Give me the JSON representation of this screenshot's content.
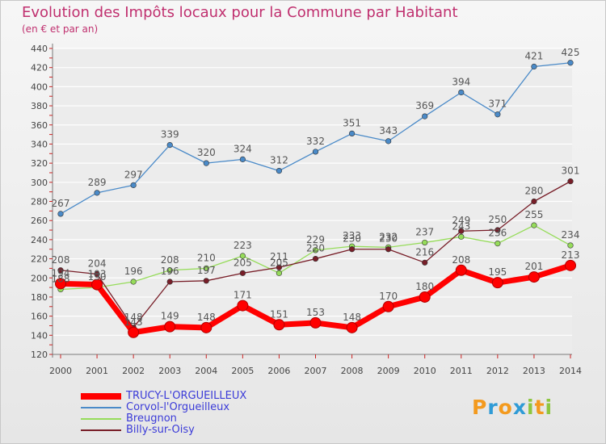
{
  "chart_data": {
    "type": "line",
    "title": "Evolution des Impôts locaux pour la Commune par Habitant",
    "subtitle": "(en € et par an)",
    "x": [
      "2000",
      "2001",
      "2002",
      "2003",
      "2004",
      "2005",
      "2006",
      "2007",
      "2008",
      "2009",
      "2010",
      "2011",
      "2012",
      "2013",
      "2014"
    ],
    "ylim": [
      120,
      440
    ],
    "yticks": [
      120,
      140,
      160,
      180,
      200,
      220,
      240,
      260,
      280,
      300,
      320,
      340,
      360,
      380,
      400,
      420,
      440
    ],
    "grid": "horizontal",
    "series": [
      {
        "name": "TRUCY-L'ORGUEILLEUX",
        "color": "#ff0000",
        "values": [
          194,
          193,
          143,
          149,
          148,
          171,
          151,
          153,
          148,
          170,
          180,
          208,
          195,
          201,
          213
        ]
      },
      {
        "name": "Corvol-l'Orgueilleux",
        "color": "#4a8ac8",
        "values": [
          267,
          289,
          297,
          339,
          320,
          324,
          312,
          332,
          351,
          343,
          369,
          394,
          371,
          421,
          425
        ]
      },
      {
        "name": "Breugnon",
        "color": "#96dc5a",
        "values": [
          188,
          190,
          196,
          208,
          210,
          223,
          205,
          229,
          233,
          232,
          237,
          243,
          236,
          255,
          234
        ]
      },
      {
        "name": "Billy-sur-Oisy",
        "color": "#781e28",
        "values": [
          208,
          204,
          148,
          196,
          197,
          205,
          211,
          220,
          230,
          230,
          216,
          249,
          250,
          280,
          301
        ]
      }
    ],
    "data_labels": [
      [
        "194",
        "193",
        "143",
        "149",
        "148",
        "171",
        "151",
        "153",
        "148",
        "170",
        "180",
        "208",
        "195",
        "201",
        "213"
      ],
      [
        "267",
        "289",
        "297",
        "339",
        "320",
        "324",
        "312",
        "332",
        "351",
        "343",
        "369",
        "394",
        "371",
        "421",
        "425"
      ],
      [
        "188",
        "190",
        "196",
        "208",
        "210",
        "223",
        "205",
        "229",
        "233",
        "232",
        "237",
        "243",
        "236",
        "255",
        "234"
      ],
      [
        "208",
        "204",
        "148",
        "196",
        "197",
        "205",
        "211",
        "220",
        "230",
        "230",
        "216",
        "249",
        "250",
        "280",
        "301"
      ]
    ]
  },
  "legend": [
    {
      "label": "TRUCY-L'ORGUEILLEUX",
      "color": "#ff0000"
    },
    {
      "label": "Corvol-l'Orgueilleux",
      "color": "#4a8ac8"
    },
    {
      "label": "Breugnon",
      "color": "#96dc5a"
    },
    {
      "label": "Billy-sur-Oisy",
      "color": "#781e28"
    }
  ],
  "logo": {
    "letters": [
      "P",
      "r",
      "o",
      "x",
      "i",
      "t",
      "i"
    ],
    "colors": [
      "#f39a1e",
      "#2f9bd6",
      "#f39a1e",
      "#2f9bd6",
      "#8dc63f",
      "#f39a1e",
      "#8dc63f"
    ]
  }
}
